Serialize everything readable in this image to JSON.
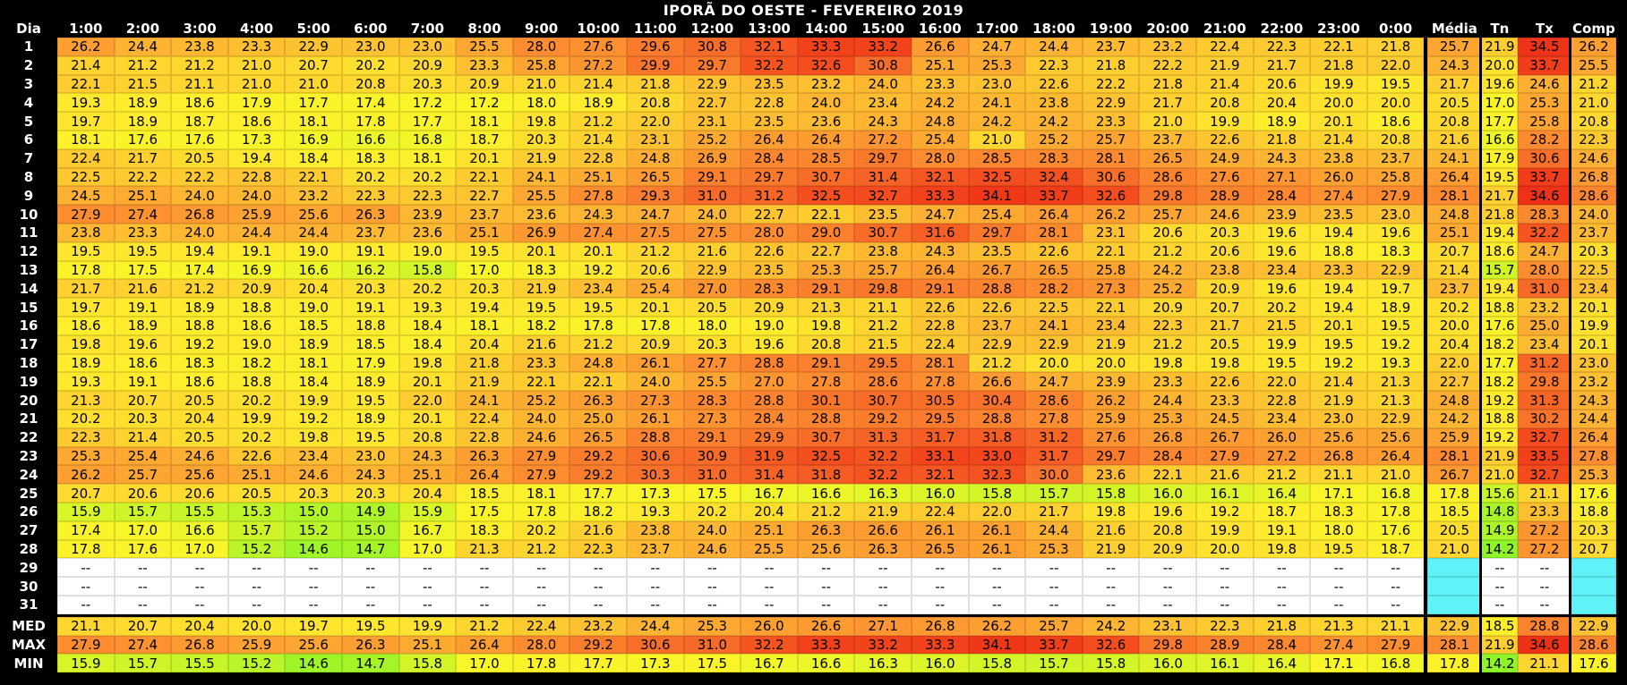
{
  "title": "IPORÃ DO OESTE - FEVEREIRO 2019",
  "header_day": "Dia",
  "hours": [
    "1:00",
    "2:00",
    "3:00",
    "4:00",
    "5:00",
    "6:00",
    "7:00",
    "8:00",
    "9:00",
    "10:00",
    "11:00",
    "12:00",
    "13:00",
    "14:00",
    "15:00",
    "16:00",
    "17:00",
    "18:00",
    "19:00",
    "20:00",
    "21:00",
    "22:00",
    "23:00",
    "0:00"
  ],
  "stat_headers": [
    "Média",
    "Tn",
    "Tx",
    "Comp"
  ],
  "days": [
    "1",
    "2",
    "3",
    "4",
    "5",
    "6",
    "7",
    "8",
    "9",
    "10",
    "11",
    "12",
    "13",
    "14",
    "15",
    "16",
    "17",
    "18",
    "19",
    "20",
    "21",
    "22",
    "23",
    "24",
    "25",
    "26",
    "27",
    "28",
    "29",
    "30",
    "31"
  ],
  "empty_marker": "--",
  "summary_labels": [
    "MED",
    "MAX",
    "MIN"
  ],
  "chart_data": {
    "type": "heatmap",
    "title": "IPORÃ DO OESTE - FEVEREIRO 2019",
    "x": [
      "1:00",
      "2:00",
      "3:00",
      "4:00",
      "5:00",
      "6:00",
      "7:00",
      "8:00",
      "9:00",
      "10:00",
      "11:00",
      "12:00",
      "13:00",
      "14:00",
      "15:00",
      "16:00",
      "17:00",
      "18:00",
      "19:00",
      "20:00",
      "21:00",
      "22:00",
      "23:00",
      "0:00"
    ],
    "y": [
      "1",
      "2",
      "3",
      "4",
      "5",
      "6",
      "7",
      "8",
      "9",
      "10",
      "11",
      "12",
      "13",
      "14",
      "15",
      "16",
      "17",
      "18",
      "19",
      "20",
      "21",
      "22",
      "23",
      "24",
      "25",
      "26",
      "27",
      "28",
      "29",
      "30",
      "31"
    ],
    "stat_columns": [
      "Média",
      "Tn",
      "Tx",
      "Comp"
    ],
    "values": [
      [
        "26.2",
        "24.4",
        "23.8",
        "23.3",
        "22.9",
        "23.0",
        "23.0",
        "25.5",
        "28.0",
        "27.6",
        "29.6",
        "30.8",
        "32.1",
        "33.3",
        "33.2",
        "26.6",
        "24.7",
        "24.4",
        "23.7",
        "23.2",
        "22.4",
        "22.3",
        "22.1",
        "21.8"
      ],
      [
        "21.4",
        "21.2",
        "21.2",
        "21.0",
        "20.7",
        "20.2",
        "20.9",
        "23.3",
        "25.8",
        "27.2",
        "29.9",
        "29.7",
        "32.2",
        "32.6",
        "30.8",
        "25.1",
        "25.3",
        "22.3",
        "21.8",
        "22.2",
        "21.9",
        "21.7",
        "21.8",
        "22.0"
      ],
      [
        "22.1",
        "21.5",
        "21.1",
        "21.0",
        "21.0",
        "20.8",
        "20.3",
        "20.9",
        "21.0",
        "21.4",
        "21.8",
        "22.9",
        "23.5",
        "23.2",
        "24.0",
        "23.3",
        "23.0",
        "22.6",
        "22.2",
        "21.8",
        "21.4",
        "20.6",
        "19.9",
        "19.5"
      ],
      [
        "19.3",
        "18.9",
        "18.6",
        "17.9",
        "17.7",
        "17.4",
        "17.2",
        "17.2",
        "18.0",
        "18.9",
        "20.8",
        "22.7",
        "22.8",
        "24.0",
        "23.4",
        "24.2",
        "24.1",
        "23.8",
        "22.9",
        "21.7",
        "20.8",
        "20.4",
        "20.0",
        "20.0"
      ],
      [
        "19.7",
        "18.9",
        "18.7",
        "18.6",
        "18.1",
        "17.8",
        "17.7",
        "18.1",
        "19.8",
        "21.2",
        "22.0",
        "23.1",
        "23.5",
        "23.6",
        "24.3",
        "24.8",
        "24.2",
        "24.2",
        "23.3",
        "21.0",
        "19.9",
        "18.9",
        "20.1",
        "18.6"
      ],
      [
        "18.1",
        "17.6",
        "17.6",
        "17.3",
        "16.9",
        "16.6",
        "16.8",
        "18.7",
        "20.3",
        "21.4",
        "23.1",
        "25.2",
        "26.4",
        "26.4",
        "27.2",
        "25.4",
        "21.0",
        "25.2",
        "25.7",
        "23.7",
        "22.6",
        "21.8",
        "21.4",
        "20.8"
      ],
      [
        "22.4",
        "21.7",
        "20.5",
        "19.4",
        "18.4",
        "18.3",
        "18.1",
        "20.1",
        "21.9",
        "22.8",
        "24.8",
        "26.9",
        "28.4",
        "28.5",
        "29.7",
        "28.0",
        "28.5",
        "28.3",
        "28.1",
        "26.5",
        "24.9",
        "24.3",
        "23.8",
        "23.7"
      ],
      [
        "22.5",
        "22.2",
        "22.2",
        "22.8",
        "22.1",
        "20.2",
        "20.2",
        "22.1",
        "24.1",
        "25.1",
        "26.5",
        "29.1",
        "29.7",
        "30.7",
        "31.4",
        "32.1",
        "32.5",
        "32.4",
        "30.6",
        "28.6",
        "27.6",
        "27.1",
        "26.0",
        "25.8"
      ],
      [
        "24.5",
        "25.1",
        "24.0",
        "24.0",
        "23.2",
        "22.3",
        "22.3",
        "22.7",
        "25.5",
        "27.8",
        "29.3",
        "31.0",
        "31.2",
        "32.5",
        "32.7",
        "33.3",
        "34.1",
        "33.7",
        "32.6",
        "29.8",
        "28.9",
        "28.4",
        "27.4",
        "27.9"
      ],
      [
        "27.9",
        "27.4",
        "26.8",
        "25.9",
        "25.6",
        "26.3",
        "23.9",
        "23.7",
        "23.6",
        "24.3",
        "24.7",
        "24.0",
        "22.7",
        "22.1",
        "23.5",
        "24.7",
        "25.4",
        "26.4",
        "26.2",
        "25.7",
        "24.6",
        "23.9",
        "23.5",
        "23.0"
      ],
      [
        "23.8",
        "23.3",
        "24.0",
        "24.4",
        "24.4",
        "23.7",
        "23.6",
        "25.1",
        "26.9",
        "27.4",
        "27.5",
        "27.5",
        "28.0",
        "29.0",
        "30.7",
        "31.6",
        "29.7",
        "28.1",
        "23.1",
        "20.6",
        "20.3",
        "19.6",
        "19.4",
        "19.6"
      ],
      [
        "19.5",
        "19.5",
        "19.4",
        "19.1",
        "19.0",
        "19.1",
        "19.0",
        "19.5",
        "20.1",
        "20.1",
        "21.2",
        "21.6",
        "22.6",
        "22.7",
        "23.8",
        "24.3",
        "23.5",
        "22.6",
        "22.1",
        "21.2",
        "20.6",
        "19.6",
        "18.8",
        "18.3"
      ],
      [
        "17.8",
        "17.5",
        "17.4",
        "16.9",
        "16.6",
        "16.2",
        "15.8",
        "17.0",
        "18.3",
        "19.2",
        "20.6",
        "22.9",
        "23.5",
        "25.3",
        "25.7",
        "26.4",
        "26.7",
        "26.5",
        "25.8",
        "24.2",
        "23.8",
        "23.4",
        "23.3",
        "22.9"
      ],
      [
        "21.7",
        "21.6",
        "21.2",
        "20.9",
        "20.4",
        "20.3",
        "20.2",
        "20.3",
        "21.9",
        "23.4",
        "25.4",
        "27.0",
        "28.3",
        "29.1",
        "29.8",
        "29.1",
        "28.8",
        "28.2",
        "27.3",
        "25.2",
        "20.9",
        "19.6",
        "19.4",
        "19.7"
      ],
      [
        "19.7",
        "19.1",
        "18.9",
        "18.8",
        "19.0",
        "19.1",
        "19.3",
        "19.4",
        "19.5",
        "19.5",
        "20.1",
        "20.5",
        "20.9",
        "21.3",
        "21.1",
        "22.6",
        "22.6",
        "22.5",
        "22.1",
        "20.9",
        "20.7",
        "20.2",
        "19.4",
        "18.9"
      ],
      [
        "18.6",
        "18.9",
        "18.8",
        "18.6",
        "18.5",
        "18.8",
        "18.4",
        "18.1",
        "18.2",
        "17.8",
        "17.8",
        "18.0",
        "19.0",
        "19.8",
        "21.2",
        "22.8",
        "23.7",
        "24.1",
        "23.4",
        "22.3",
        "21.7",
        "21.5",
        "20.1",
        "19.5"
      ],
      [
        "19.8",
        "19.6",
        "19.2",
        "19.0",
        "18.9",
        "18.5",
        "18.4",
        "20.4",
        "21.6",
        "21.2",
        "20.9",
        "20.3",
        "19.6",
        "20.8",
        "21.5",
        "22.4",
        "22.9",
        "22.9",
        "21.9",
        "21.2",
        "20.5",
        "19.9",
        "19.5",
        "19.2"
      ],
      [
        "18.9",
        "18.6",
        "18.3",
        "18.2",
        "18.1",
        "17.9",
        "19.8",
        "21.8",
        "23.3",
        "24.8",
        "26.1",
        "27.7",
        "28.8",
        "29.1",
        "29.5",
        "28.1",
        "21.2",
        "20.0",
        "20.0",
        "19.8",
        "19.8",
        "19.5",
        "19.2",
        "19.3"
      ],
      [
        "19.3",
        "19.1",
        "18.6",
        "18.8",
        "18.4",
        "18.9",
        "20.1",
        "21.9",
        "22.1",
        "22.1",
        "24.0",
        "25.5",
        "27.0",
        "27.8",
        "28.6",
        "27.8",
        "26.6",
        "24.7",
        "23.9",
        "23.3",
        "22.6",
        "22.0",
        "21.4",
        "21.3"
      ],
      [
        "21.3",
        "20.7",
        "20.5",
        "20.2",
        "19.9",
        "19.5",
        "22.0",
        "24.1",
        "25.2",
        "26.3",
        "27.3",
        "28.3",
        "28.8",
        "30.1",
        "30.7",
        "30.5",
        "30.4",
        "28.6",
        "26.2",
        "24.4",
        "23.3",
        "22.8",
        "21.9",
        "21.3"
      ],
      [
        "20.2",
        "20.3",
        "20.4",
        "19.9",
        "19.2",
        "18.9",
        "20.1",
        "22.4",
        "24.0",
        "25.0",
        "26.1",
        "27.3",
        "28.4",
        "28.8",
        "29.2",
        "29.5",
        "28.8",
        "27.8",
        "25.9",
        "25.3",
        "24.5",
        "23.4",
        "23.0",
        "22.9"
      ],
      [
        "22.3",
        "21.4",
        "20.5",
        "20.2",
        "19.8",
        "19.5",
        "20.8",
        "22.8",
        "24.6",
        "26.5",
        "28.8",
        "29.1",
        "29.9",
        "30.7",
        "31.3",
        "31.7",
        "31.8",
        "31.2",
        "27.6",
        "26.8",
        "26.7",
        "26.0",
        "25.6",
        "25.6"
      ],
      [
        "25.3",
        "25.4",
        "24.6",
        "22.6",
        "23.4",
        "23.0",
        "24.3",
        "26.3",
        "27.9",
        "29.2",
        "30.6",
        "30.9",
        "31.9",
        "32.5",
        "32.2",
        "33.1",
        "33.0",
        "31.7",
        "29.7",
        "28.4",
        "27.9",
        "27.2",
        "26.8",
        "26.4"
      ],
      [
        "26.2",
        "25.7",
        "25.6",
        "25.1",
        "24.6",
        "24.3",
        "25.1",
        "26.4",
        "27.9",
        "29.2",
        "30.3",
        "31.0",
        "31.4",
        "31.8",
        "32.2",
        "32.1",
        "32.3",
        "30.0",
        "23.6",
        "22.1",
        "21.6",
        "21.2",
        "21.1",
        "21.0"
      ],
      [
        "20.7",
        "20.6",
        "20.6",
        "20.5",
        "20.3",
        "20.3",
        "20.4",
        "18.5",
        "18.1",
        "17.7",
        "17.3",
        "17.5",
        "16.7",
        "16.6",
        "16.3",
        "16.0",
        "15.8",
        "15.7",
        "15.8",
        "16.0",
        "16.1",
        "16.4",
        "17.1",
        "16.8"
      ],
      [
        "15.9",
        "15.7",
        "15.5",
        "15.3",
        "15.0",
        "14.9",
        "15.9",
        "17.5",
        "17.8",
        "18.2",
        "19.3",
        "20.2",
        "20.4",
        "21.2",
        "21.9",
        "22.4",
        "22.0",
        "21.7",
        "19.8",
        "19.6",
        "19.2",
        "18.7",
        "18.3",
        "17.8"
      ],
      [
        "17.4",
        "17.0",
        "16.6",
        "15.7",
        "15.2",
        "15.0",
        "16.7",
        "18.3",
        "20.2",
        "21.6",
        "23.8",
        "24.0",
        "25.1",
        "26.3",
        "26.6",
        "26.1",
        "26.1",
        "24.4",
        "21.6",
        "20.8",
        "19.9",
        "19.1",
        "18.0",
        "17.6"
      ],
      [
        "17.8",
        "17.6",
        "17.0",
        "15.2",
        "14.6",
        "14.7",
        "17.0",
        "21.3",
        "21.2",
        "22.3",
        "23.7",
        "24.6",
        "25.5",
        "25.6",
        "26.3",
        "26.5",
        "26.1",
        "25.3",
        "21.9",
        "20.9",
        "20.0",
        "19.8",
        "19.5",
        "18.7"
      ]
    ],
    "stats": [
      [
        "25.7",
        "21.9",
        "34.5",
        "26.2"
      ],
      [
        "24.3",
        "20.0",
        "33.7",
        "25.5"
      ],
      [
        "21.7",
        "19.6",
        "24.6",
        "21.2"
      ],
      [
        "20.5",
        "17.0",
        "25.3",
        "21.0"
      ],
      [
        "20.8",
        "17.7",
        "25.8",
        "20.8"
      ],
      [
        "21.6",
        "16.6",
        "28.2",
        "22.3"
      ],
      [
        "24.1",
        "17.9",
        "30.6",
        "24.6"
      ],
      [
        "26.4",
        "19.5",
        "33.7",
        "26.8"
      ],
      [
        "28.1",
        "21.7",
        "34.6",
        "28.6"
      ],
      [
        "24.8",
        "21.8",
        "28.3",
        "24.0"
      ],
      [
        "25.1",
        "19.4",
        "32.2",
        "23.7"
      ],
      [
        "20.7",
        "18.6",
        "24.7",
        "20.3"
      ],
      [
        "21.4",
        "15.7",
        "28.0",
        "22.5"
      ],
      [
        "23.7",
        "19.4",
        "31.0",
        "23.4"
      ],
      [
        "20.2",
        "18.8",
        "23.2",
        "20.1"
      ],
      [
        "20.0",
        "17.6",
        "25.0",
        "19.9"
      ],
      [
        "20.4",
        "18.2",
        "23.4",
        "20.1"
      ],
      [
        "22.0",
        "17.7",
        "31.2",
        "23.0"
      ],
      [
        "22.7",
        "18.2",
        "29.8",
        "23.2"
      ],
      [
        "24.8",
        "19.2",
        "31.3",
        "24.3"
      ],
      [
        "24.2",
        "18.8",
        "30.2",
        "24.4"
      ],
      [
        "25.9",
        "19.2",
        "32.7",
        "26.4"
      ],
      [
        "28.1",
        "21.9",
        "33.5",
        "27.8"
      ],
      [
        "26.7",
        "21.0",
        "32.7",
        "25.3"
      ],
      [
        "17.8",
        "15.6",
        "21.1",
        "17.6"
      ],
      [
        "18.5",
        "14.8",
        "23.3",
        "18.8"
      ],
      [
        "20.5",
        "14.9",
        "27.2",
        "20.3"
      ],
      [
        "21.0",
        "14.2",
        "27.2",
        "20.7"
      ]
    ],
    "summary": {
      "MED": [
        "21.1",
        "20.7",
        "20.4",
        "20.0",
        "19.7",
        "19.5",
        "19.9",
        "21.2",
        "22.4",
        "23.2",
        "24.4",
        "25.3",
        "26.0",
        "26.6",
        "27.1",
        "26.8",
        "26.2",
        "25.7",
        "24.2",
        "23.1",
        "22.3",
        "21.8",
        "21.3",
        "21.1",
        "22.9",
        "18.5",
        "28.8",
        "22.9"
      ],
      "MAX": [
        "27.9",
        "27.4",
        "26.8",
        "25.9",
        "25.6",
        "26.3",
        "25.1",
        "26.4",
        "28.0",
        "29.2",
        "30.6",
        "31.0",
        "32.2",
        "33.3",
        "33.2",
        "33.3",
        "34.1",
        "33.7",
        "32.6",
        "29.8",
        "28.9",
        "28.4",
        "27.4",
        "27.9",
        "28.1",
        "21.9",
        "34.6",
        "28.6"
      ],
      "MIN": [
        "15.9",
        "15.7",
        "15.5",
        "15.2",
        "14.6",
        "14.7",
        "15.8",
        "17.0",
        "17.8",
        "17.7",
        "17.3",
        "17.5",
        "16.7",
        "16.6",
        "16.3",
        "16.0",
        "15.8",
        "15.7",
        "15.8",
        "16.0",
        "16.1",
        "16.4",
        "17.1",
        "16.8",
        "17.8",
        "14.2",
        "21.1",
        "17.6"
      ]
    }
  }
}
